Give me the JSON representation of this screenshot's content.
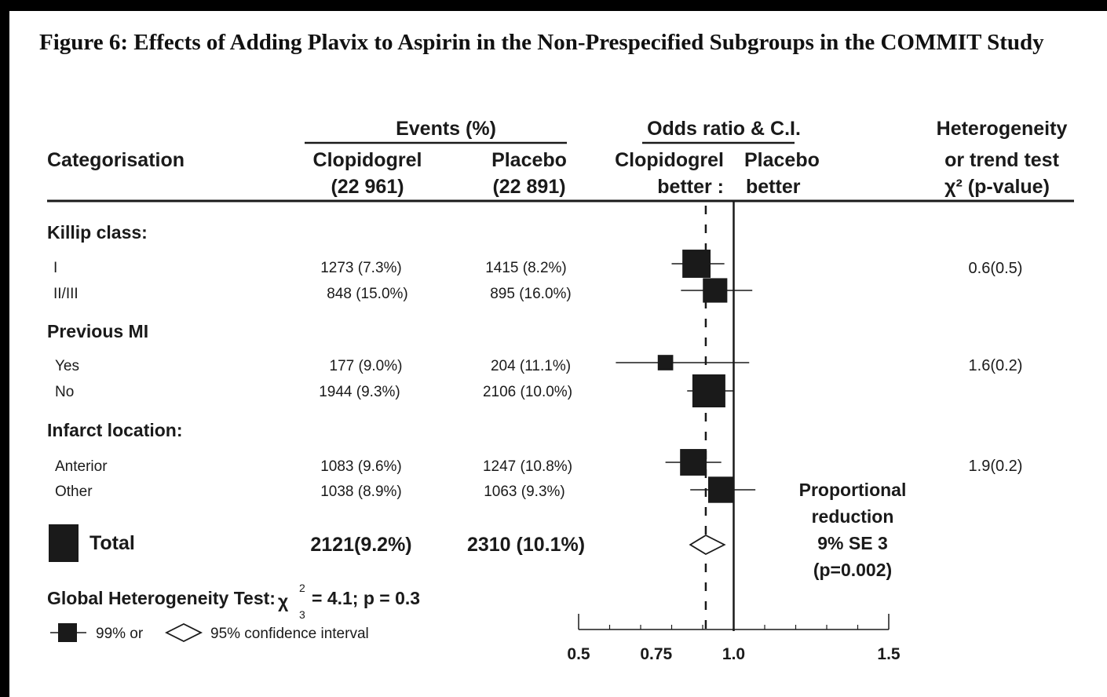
{
  "title": "Figure 6: Effects of Adding Plavix to Aspirin in the Non-Prespecified Subgroups in the COMMIT Study",
  "headers": {
    "categorisation": "Categorisation",
    "events": "Events (%)",
    "clopidogrel": "Clopidogrel",
    "clopidogrel_n": "(22 961)",
    "placebo": "Placebo",
    "placebo_n": "(22 891)",
    "odds_ratio": "Odds ratio & C.I.",
    "left_better_1": "Clopidogrel",
    "left_better_2": "better :",
    "right_better_1": "Placebo",
    "right_better_2": "better",
    "heterogeneity_1": "Heterogeneity",
    "heterogeneity_2": "or trend test",
    "heterogeneity_3": "χ² (p-value)"
  },
  "sections": [
    {
      "label": "Killip class:",
      "heterogeneity": "0.6(0.5)",
      "rows": [
        {
          "label": "I",
          "clopidogrel": "1273 (7.3%)",
          "placebo": "1415 (8.2%)"
        },
        {
          "label": "II/III",
          "clopidogrel": "848 (15.0%)",
          "placebo": "895 (16.0%)"
        }
      ]
    },
    {
      "label": "Previous MI",
      "heterogeneity": "1.6(0.2)",
      "rows": [
        {
          "label": "Yes",
          "clopidogrel": "177 (9.0%)",
          "placebo": "204 (11.1%)"
        },
        {
          "label": "No",
          "clopidogrel": "1944 (9.3%)",
          "placebo": "2106 (10.0%)"
        }
      ]
    },
    {
      "label": "Infarct location:",
      "heterogeneity": "1.9(0.2)",
      "rows": [
        {
          "label": "Anterior",
          "clopidogrel": "1083 (9.6%)",
          "placebo": "1247 (10.8%)"
        },
        {
          "label": "Other",
          "clopidogrel": "1038 (8.9%)",
          "placebo": "1063 (9.3%)"
        }
      ]
    }
  ],
  "total": {
    "label": "Total",
    "clopidogrel": "2121(9.2%)",
    "placebo": "2310 (10.1%)"
  },
  "proportional_reduction": [
    "Proportional",
    "reduction",
    "9% SE 3",
    "(p=0.002)"
  ],
  "global_test": {
    "prefix": "Global Heterogeneity Test:",
    "chi": "χ",
    "sup": "2",
    "sub": "3",
    "value": "= 4.1; p = 0.3"
  },
  "legend": {
    "ci99": "99% or",
    "ci95": "95% confidence interval"
  },
  "chart_data": {
    "type": "forest",
    "x_axis": {
      "range": [
        0.5,
        1.5
      ],
      "ticks": [
        0.5,
        0.75,
        1.0,
        1.5
      ],
      "tick_labels": [
        "0.5",
        "0.75",
        "1.0",
        "1.5"
      ]
    },
    "reference_line": 1.0,
    "overall_line": 0.91,
    "series": [
      {
        "category": "I",
        "or": 0.88,
        "ci": [
          0.8,
          0.97
        ],
        "weight": 1273
      },
      {
        "category": "II/III",
        "or": 0.94,
        "ci": [
          0.83,
          1.06
        ],
        "weight": 848
      },
      {
        "category": "Yes",
        "or": 0.78,
        "ci": [
          0.62,
          1.05
        ],
        "weight": 177
      },
      {
        "category": "No",
        "or": 0.92,
        "ci": [
          0.85,
          1.0
        ],
        "weight": 1944
      },
      {
        "category": "Anterior",
        "or": 0.87,
        "ci": [
          0.78,
          0.96
        ],
        "weight": 1083
      },
      {
        "category": "Other",
        "or": 0.96,
        "ci": [
          0.86,
          1.07
        ],
        "weight": 1038
      }
    ],
    "total": {
      "or": 0.91,
      "ci": [
        0.86,
        0.97
      ]
    }
  }
}
